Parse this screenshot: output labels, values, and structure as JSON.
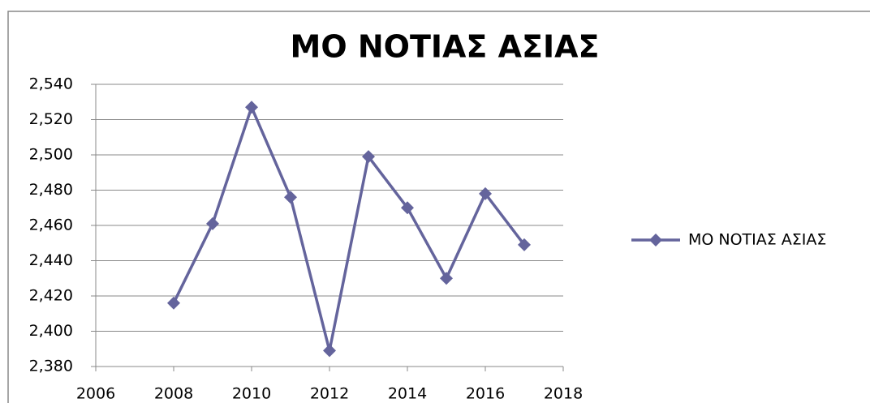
{
  "chart_data": {
    "type": "line",
    "title": "ΜΟ ΝΟΤΙΑΣ ΑΣΙΑΣ",
    "x": [
      2008,
      2009,
      2010,
      2011,
      2012,
      2013,
      2014,
      2015,
      2016,
      2017
    ],
    "series": [
      {
        "name": "ΜΟ ΝΟΤΙΑΣ ΑΣΙΑΣ",
        "color": "#64649c",
        "values": [
          2.416,
          2.461,
          2.527,
          2.476,
          2.389,
          2.499,
          2.47,
          2.43,
          2.478,
          2.449
        ]
      }
    ],
    "xlim": [
      2006,
      2018
    ],
    "xticks": [
      2006,
      2008,
      2010,
      2012,
      2014,
      2016,
      2018
    ],
    "ylim": [
      2.38,
      2.54
    ],
    "yticks": [
      {
        "value": 2.38,
        "label": "2,380"
      },
      {
        "value": 2.4,
        "label": "2,400"
      },
      {
        "value": 2.42,
        "label": "2,420"
      },
      {
        "value": 2.44,
        "label": "2,440"
      },
      {
        "value": 2.46,
        "label": "2,460"
      },
      {
        "value": 2.48,
        "label": "2,480"
      },
      {
        "value": 2.5,
        "label": "2,500"
      },
      {
        "value": 2.52,
        "label": "2,520"
      },
      {
        "value": 2.54,
        "label": "2,540"
      }
    ],
    "grid": true,
    "legend": "right"
  }
}
